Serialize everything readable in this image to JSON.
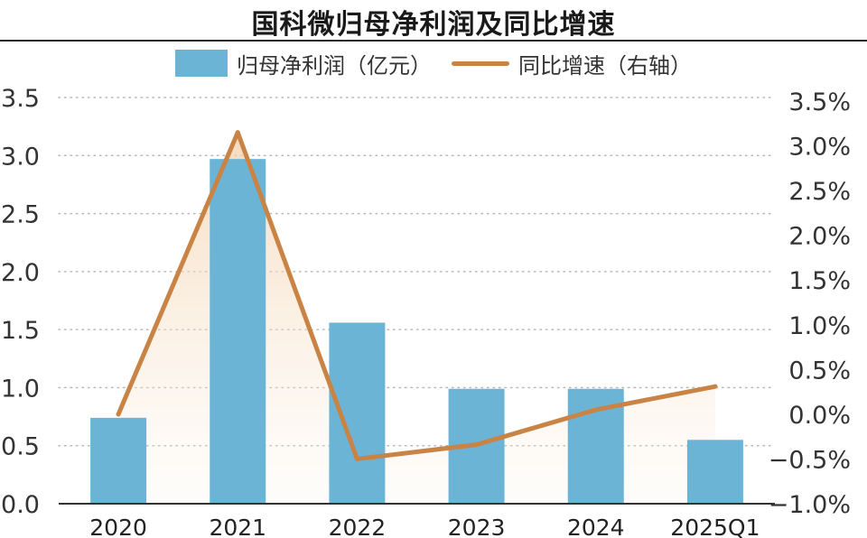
{
  "chart_data": {
    "type": "bar",
    "title": "国科微归母净利润及同比增速",
    "categories": [
      "2020",
      "2021",
      "2022",
      "2023",
      "2024",
      "2025Q1"
    ],
    "series": [
      {
        "name": "归母净利润（亿元）",
        "type": "bar",
        "axis": "left",
        "color": "#6cb4d6",
        "values": [
          0.74,
          2.97,
          1.56,
          0.99,
          0.99,
          0.55
        ]
      },
      {
        "name": "同比增速（右轴）",
        "type": "line",
        "axis": "right",
        "color": "#c98445",
        "values": [
          0.0,
          3.15,
          -0.5,
          -0.34,
          0.05,
          0.31
        ]
      }
    ],
    "y_left": {
      "min": 0,
      "max": 3.5,
      "ticks": [
        "0.0",
        "0.5",
        "1.0",
        "1.5",
        "2.0",
        "2.5",
        "3.0",
        "3.5"
      ]
    },
    "y_right": {
      "min": -1.0,
      "max": 3.5,
      "unit": "%",
      "ticks": [
        "−1.0%",
        "−0.5%",
        "0.0%",
        "0.5%",
        "1.0%",
        "1.5%",
        "2.0%",
        "2.5%",
        "3.0%",
        "3.5%"
      ]
    },
    "grid": true,
    "legend_position": "top-center"
  }
}
